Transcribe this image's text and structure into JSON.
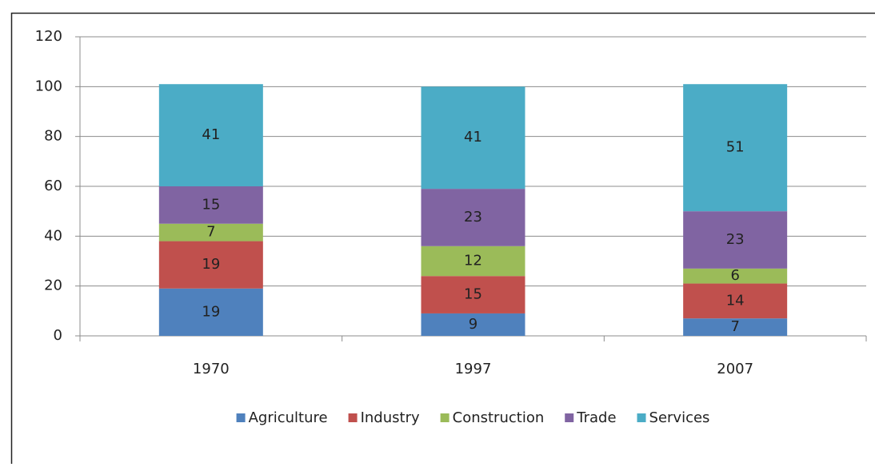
{
  "chart_data": {
    "type": "stacked_bar",
    "categories": [
      "1970",
      "1997",
      "2007"
    ],
    "series": [
      {
        "name": "Agriculture",
        "color": "#4f81bd",
        "values": [
          19,
          9,
          7
        ]
      },
      {
        "name": "Industry",
        "color": "#c0504d",
        "values": [
          19,
          15,
          14
        ]
      },
      {
        "name": "Construction",
        "color": "#9bbb59",
        "values": [
          7,
          12,
          6
        ]
      },
      {
        "name": "Trade",
        "color": "#8064a2",
        "values": [
          15,
          23,
          23
        ]
      },
      {
        "name": "Services",
        "color": "#4bacc6",
        "values": [
          41,
          41,
          51
        ]
      }
    ],
    "ylim": [
      0,
      120
    ],
    "yticks": [
      0,
      20,
      40,
      60,
      80,
      100,
      120
    ],
    "grid": true,
    "legend": "bottom"
  }
}
